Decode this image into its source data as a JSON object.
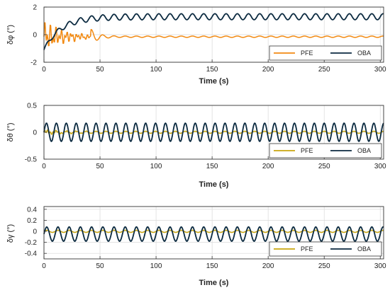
{
  "colors": {
    "orange": "#F28A12",
    "yellow": "#C9A60E",
    "navy": "#0B2A40",
    "grid": "#d9d9d9"
  },
  "chart_data": [
    {
      "type": "line",
      "ylabel": "δφ (°)",
      "xlabel": "Time (s)",
      "xlim": [
        0,
        303
      ],
      "ylim": [
        -2,
        2
      ],
      "xticks": [
        "0",
        "50",
        "100",
        "150",
        "200",
        "250",
        "300"
      ],
      "yticks": [
        "2",
        "0",
        "-2"
      ],
      "ytick_values": [
        2,
        0,
        -2
      ],
      "grid": true,
      "legend_position": "bottom-right",
      "series": [
        {
          "name": "PFE",
          "color": "#F28A12",
          "model": {
            "offset": -0.15,
            "amp": 0.05,
            "period": 10,
            "transient_amp": 1.3,
            "transient_end": 42,
            "decay": 0.05
          }
        },
        {
          "name": "OBA",
          "color": "#0B2A40",
          "model": {
            "start": -1.1,
            "offset": 1.3,
            "rise_tau": 15,
            "amp": 0.22,
            "period": 10
          }
        }
      ]
    },
    {
      "type": "line",
      "ylabel": "δθ (°)",
      "xlabel": "Time (s)",
      "xlim": [
        0,
        303
      ],
      "ylim": [
        -0.5,
        0.5
      ],
      "xticks": [
        "0",
        "50",
        "100",
        "150",
        "200",
        "250",
        "300"
      ],
      "yticks": [
        "0.5",
        "0",
        "-0.5"
      ],
      "ytick_values": [
        0.5,
        0,
        -0.5
      ],
      "grid": true,
      "legend_position": "bottom-right",
      "series": [
        {
          "name": "PFE",
          "color": "#C9A60E",
          "model": {
            "offset": 0.0,
            "amp": 0.02,
            "period": 8.85
          }
        },
        {
          "name": "OBA",
          "color": "#0B2A40",
          "model": {
            "offset": 0.0,
            "amp": 0.17,
            "period": 8.85
          }
        }
      ]
    },
    {
      "type": "line",
      "ylabel": "δγ (°)",
      "xlabel": "Time (s)",
      "xlim": [
        0,
        303
      ],
      "ylim": [
        -0.5,
        0.45
      ],
      "xticks": [
        "0",
        "50",
        "100",
        "150",
        "200",
        "250",
        "300"
      ],
      "yticks": [
        "0.4",
        "0.2",
        "0",
        "-0.2",
        "-0.4"
      ],
      "ytick_values": [
        0.4,
        0.2,
        0,
        -0.2,
        -0.4
      ],
      "grid": true,
      "legend_position": "bottom-right",
      "series": [
        {
          "name": "PFE",
          "color": "#C9A60E",
          "model": {
            "offset": 0.0,
            "amp": 0.02,
            "period": 10
          }
        },
        {
          "name": "OBA",
          "color": "#0B2A40",
          "model": {
            "offset": -0.05,
            "amp": 0.13,
            "period": 10
          }
        }
      ]
    }
  ]
}
